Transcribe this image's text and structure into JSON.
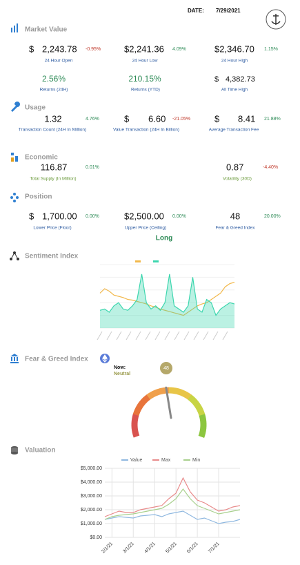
{
  "header": {
    "date_label": "DATE:",
    "date": "7/29/2021"
  },
  "market_value": {
    "title": "Market Value",
    "items": [
      {
        "prefix": "$",
        "value": "2,243.78",
        "change": "-0.95%",
        "label": "24 Hour Open"
      },
      {
        "value": "$2,241.36",
        "change": "4.09%",
        "label": "24 Hour Low"
      },
      {
        "value": "$2,346.70",
        "change": "1.15%",
        "label": "24 Hour High"
      },
      {
        "value": "2.56%",
        "label": "Returns (24H)"
      },
      {
        "value": "210.15%",
        "label": "Returns (YTD)"
      },
      {
        "prefix": "$",
        "value": "4,382.73",
        "label": "All Time High"
      }
    ]
  },
  "usage": {
    "title": "Usage",
    "items": [
      {
        "value": "1.32",
        "change": "4.76%",
        "label": "Transaction Count (24H In Million)"
      },
      {
        "prefix": "$",
        "value": "6.60",
        "change": "-21.05%",
        "label": "Value Transaction (24H In Billion)"
      },
      {
        "prefix": "$",
        "value": "8.41",
        "change": "21.88%",
        "label": "Average Transaction Fee"
      }
    ]
  },
  "economic": {
    "title": "Economic",
    "items": [
      {
        "value": "116.87",
        "change": "0.01%",
        "label": "Total Supply (In Million)"
      },
      {
        "value": "0.87",
        "change": "-4.40%",
        "label": "Volatility (30D)"
      }
    ]
  },
  "position": {
    "title": "Position",
    "items": [
      {
        "prefix": "$",
        "value": "1,700.00",
        "change": "0.00%",
        "label": "Lower Price (Floor)"
      },
      {
        "value": "$2,500.00",
        "change": "0.00%",
        "label": "Upper Price (Ceiling)"
      },
      {
        "value": "48",
        "change": "20.00%",
        "label": "Fear & Greed Index"
      }
    ],
    "signal": "Long"
  },
  "sentiment": {
    "title": "Sentiment Index"
  },
  "fear_greed": {
    "title": "Fear & Greed Index",
    "now_label": "Now:",
    "status": "Neutral",
    "value": 48,
    "range": [
      0,
      100
    ]
  },
  "valuation": {
    "title": "Valuation"
  },
  "chart_data": [
    {
      "type": "line",
      "ylim": [
        0,
        100
      ],
      "grid": true,
      "series": [
        {
          "color": "#f2b84b",
          "values": [
            55,
            62,
            58,
            52,
            50,
            48,
            45,
            44,
            42,
            40,
            38,
            35,
            33,
            30,
            28,
            26,
            24,
            22,
            20,
            25,
            30,
            35,
            38,
            40,
            45,
            50,
            55,
            65,
            70,
            72
          ]
        },
        {
          "color": "#3dd6ae",
          "area": true,
          "values": [
            28,
            30,
            25,
            35,
            40,
            30,
            28,
            35,
            45,
            85,
            40,
            30,
            35,
            28,
            40,
            85,
            35,
            30,
            25,
            35,
            80,
            30,
            25,
            45,
            40,
            20,
            30,
            35,
            40,
            38
          ]
        }
      ]
    },
    {
      "type": "line",
      "grid": true,
      "legend": "top",
      "categories": [
        null,
        "2/1/21",
        null,
        null,
        "3/1/21",
        null,
        null,
        "4/1/21",
        null,
        null,
        "5/1/21",
        null,
        null,
        "6/1/21",
        null,
        null,
        "7/1/21",
        null,
        null,
        null
      ],
      "ylim": [
        0,
        5000
      ],
      "yticks": [
        {
          "value": 0,
          "label": "$0.00"
        },
        {
          "value": 1000,
          "label": "$1,000.00"
        },
        {
          "value": 2000,
          "label": "$2,000.00"
        },
        {
          "value": 3000,
          "label": "$3,000.00"
        },
        {
          "value": 4000,
          "label": "$4,000.00"
        },
        {
          "value": 5000,
          "label": "$5,000.00"
        }
      ],
      "series": [
        {
          "name": "Value",
          "color": "#8fb8e0",
          "values": [
            1300,
            1400,
            1500,
            1450,
            1400,
            1550,
            1600,
            1650,
            1500,
            1700,
            1800,
            1900,
            1600,
            1300,
            1400,
            1200,
            1000,
            1100,
            1150,
            1300
          ]
        },
        {
          "name": "Max",
          "color": "#e88a8a",
          "values": [
            1500,
            1700,
            1900,
            1800,
            1800,
            2000,
            2100,
            2200,
            2300,
            2800,
            3200,
            4300,
            3300,
            2700,
            2500,
            2200,
            1900,
            2000,
            2200,
            2300
          ]
        },
        {
          "name": "Min",
          "color": "#a8d08d",
          "values": [
            1300,
            1500,
            1600,
            1650,
            1700,
            1800,
            1900,
            2000,
            2100,
            2400,
            2800,
            3500,
            2800,
            2300,
            2100,
            1900,
            1700,
            1800,
            1900,
            2000
          ]
        }
      ]
    }
  ]
}
